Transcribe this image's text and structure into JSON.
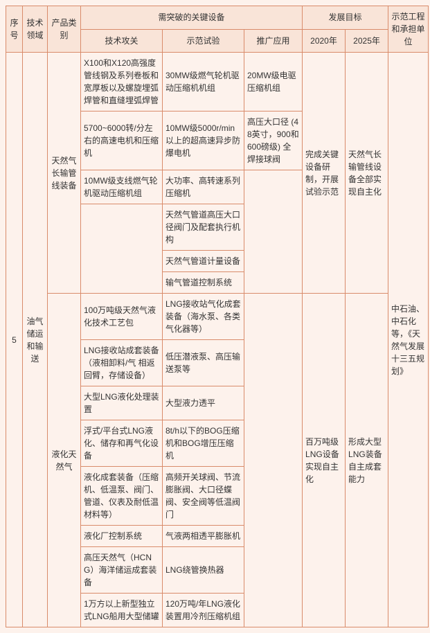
{
  "header": {
    "seq": "序号",
    "field": "技术领域",
    "product": "产品类别",
    "key_equipment": "需突破的关键设备",
    "tech_breakthrough": "技术攻关",
    "demo_test": "示范试验",
    "promotion": "推广应用",
    "dev_target": "发展目标",
    "y2020": "2020年",
    "y2025": "2025年",
    "demo_project": "示范工程和承担单位"
  },
  "seq_val": "5",
  "field_val": "油气储运和输送",
  "product_a": "天然气长输管线装备",
  "product_b": "液化天然气",
  "unit_val": "中石油、中石化等，《天然气发展十三五规划》",
  "a": {
    "r1": {
      "tech": "X100和X120高强度管线钢及系列卷板和宽厚板以及螺旋埋弧焊管和直缝埋弧焊管",
      "demo": "30MW级燃气轮机驱动压缩机机组",
      "app": "20MW级电驱压缩机组"
    },
    "r2": {
      "tech": "5700~6000转/分左右的高速电机和压缩机",
      "demo": "10MW级5000r/min以上的超高速异步防爆电机",
      "app": "高压大口径 (48英寸，900和600磅级) 全焊接球阀"
    },
    "r3": {
      "tech": "10MW级支线燃气轮机驱动压缩机组",
      "demo": "大功率、高转速系列压缩机"
    },
    "r4": {
      "demo": "天然气管道高压大口径阀门及配套执行机构"
    },
    "r5": {
      "demo": "天然气管道计量设备"
    },
    "r6": {
      "demo": "输气管道控制系统"
    },
    "y2020": "完成关键设备研制，开展试验示范",
    "y2025": "天然气长输管线设备全部实现自主化"
  },
  "b": {
    "r1": {
      "tech": "100万吨级天然气液化技术工艺包",
      "demo": "LNG接收站气化成套装备（海水泵、各类气化器等）"
    },
    "r2": {
      "tech": "LNG接收站成套装备（液相卸料/气 相返回臂，存储设备）",
      "demo": "低压潜液泵、高压输送泵等"
    },
    "r3": {
      "tech": "大型LNG液化处理装置",
      "demo": "大型液力透平"
    },
    "r4": {
      "tech": "浮式/平台式LNG液化、储存和再气化设备",
      "demo": "8t/h以下的BOG压缩机和BOG增压压缩机"
    },
    "r5": {
      "tech": "液化成套装备（压缩机、低温泵、阀门、管道、仪表及耐低温材料等）",
      "demo": "高频开关球阀、节流膨胀阀、大口径蝶阀、安全阀等低温阀门"
    },
    "r6": {
      "tech": "液化厂控制系统",
      "demo": "气液两相透平膨胀机"
    },
    "r7": {
      "tech": "高压天然气（HCNG）海洋储运成套装备",
      "demo": "LNG绕管换热器"
    },
    "r8": {
      "tech": "1万方以上新型独立式LNG船用大型储罐",
      "demo": "120万吨/年LNG液化装置用冷剂压缩机组"
    },
    "y2020": "百万吨级LNG设备实现自主化",
    "y2025": "形成大型LNG装备自主成套能力"
  }
}
